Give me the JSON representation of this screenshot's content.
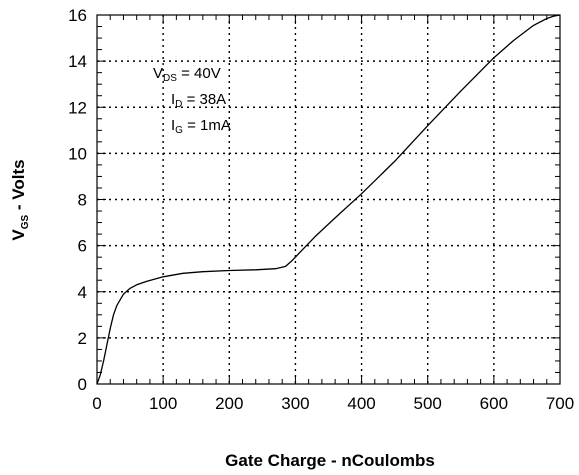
{
  "chart_data": {
    "type": "line",
    "title": "",
    "xlabel": "Gate Charge - nCoulombs",
    "ylabel": {
      "main": "V",
      "sub": "GS",
      "rest": " - Volts"
    },
    "xlim": [
      0,
      700
    ],
    "ylim": [
      0,
      16
    ],
    "x_ticks": [
      0,
      100,
      200,
      300,
      400,
      500,
      600,
      700
    ],
    "y_ticks": [
      0,
      2,
      4,
      6,
      8,
      10,
      12,
      14,
      16
    ],
    "x_tick_labels": [
      "0",
      "100",
      "200",
      "300",
      "400",
      "500",
      "600",
      "700"
    ],
    "y_tick_labels": [
      "0",
      "2",
      "4",
      "6",
      "8",
      "10",
      "12",
      "14",
      "16"
    ],
    "grid": "dotted",
    "annotations": [
      {
        "main": "V",
        "sub": "DS",
        "rest": " = 40V"
      },
      {
        "main": "I",
        "sub": "D",
        "rest": " = 38A"
      },
      {
        "main": "I",
        "sub": "G",
        "rest": " = 1mA"
      }
    ],
    "series": [
      {
        "color": "#000000",
        "x": [
          0,
          5,
          10,
          15,
          20,
          25,
          30,
          40,
          50,
          60,
          75,
          100,
          130,
          160,
          200,
          240,
          270,
          285,
          295,
          310,
          330,
          360,
          400,
          450,
          500,
          550,
          600,
          630,
          660,
          680,
          690,
          700
        ],
        "y": [
          0,
          0.4,
          1.0,
          1.7,
          2.4,
          3.0,
          3.4,
          3.9,
          4.15,
          4.3,
          4.45,
          4.65,
          4.8,
          4.87,
          4.92,
          4.95,
          5.0,
          5.1,
          5.35,
          5.8,
          6.4,
          7.2,
          8.25,
          9.65,
          11.2,
          12.7,
          14.15,
          14.9,
          15.55,
          15.85,
          15.95,
          16.0
        ]
      }
    ]
  }
}
